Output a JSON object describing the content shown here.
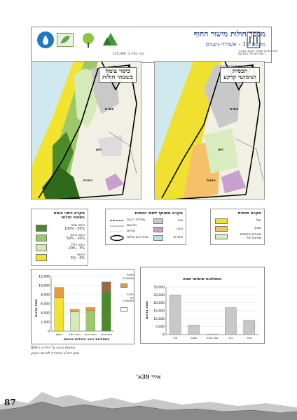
{
  "header": {
    "title": "מסמך חולות מישור החוף",
    "subtitle": "מקטע 10 - אשדוד-ניצנים",
    "scale": "קנה מידה 1: 125,000",
    "source": "רשות ישראל החדשה",
    "logos": [
      {
        "name": "ministry",
        "caption": "מדינת ישראל\nהמשרד להגנת הסביבה"
      },
      {
        "name": "forest",
        "caption": "החברה\nלהגנת הטבע"
      },
      {
        "name": "tree",
        "caption": "קק\"ל"
      },
      {
        "name": "leaf",
        "caption": "רשות הטבע\nוהגנים"
      },
      {
        "name": "drop",
        "caption": "מים"
      }
    ]
  },
  "map_left": {
    "title_line1": "כיסוי צומח",
    "title_line2": "בשטחי חולות",
    "labels": {
      "city": "אשדוד",
      "mid": "ניצן",
      "south": "ניצנים"
    }
  },
  "map_right": {
    "title_line1": "תכסית",
    "title_line2": "ושימושי קרקע",
    "labels": {
      "city": "אשדוד",
      "mid": "ניצן",
      "south": "ניצנים"
    }
  },
  "legend_veg": {
    "title_line1": "מקרא כיסוי צומח",
    "title_line2": "בשטחי חולות",
    "items": [
      {
        "label": "כיסוי גבוה\n50% - 100%",
        "color": "#4d8a2a"
      },
      {
        "label": "כיסוי בינוני\n20% - 50%",
        "color": "#9cc86a"
      },
      {
        "label": "כיסוי דליל\n5% - 20%",
        "color": "#d6e9b8"
      },
      {
        "label": "חשוף\n0% - 5%",
        "color": "#f2e32c"
      }
    ]
  },
  "legend_common": {
    "title": "מקרא משותף לשתי המפות",
    "items": [
      {
        "label": "מסילת רכבת",
        "kind": "line"
      },
      {
        "label": "כבישים",
        "kind": "line"
      },
      {
        "label": "נחלים",
        "kind": "dotted"
      },
      {
        "label": "גבול גוש חולות",
        "kind": "outline"
      }
    ],
    "right_items": [
      {
        "label": "בנוי",
        "color": "#c8c8c8"
      },
      {
        "label": "מבני",
        "color": "#c7a0cf"
      },
      {
        "label": "מים-ים",
        "color": "#bfe0e8"
      }
    ]
  },
  "legend_landuse": {
    "title": "מקרא תכסית",
    "items": [
      {
        "label": "חול",
        "color": "#f0e030"
      },
      {
        "label": "מטעי",
        "color": "#f4c06a"
      },
      {
        "label": "שטחים פתוחים\nשאינם חול",
        "color": "#d8ecc0"
      }
    ]
  },
  "chart_veg": {
    "ylabel": "שטח בדונם",
    "xlabel": "התפלגות כיסוי החולות בכמות",
    "yticks": [
      "0",
      "2,000",
      "4,000",
      "6,000",
      "8,000",
      "10,000",
      "12,000"
    ],
    "legend_built": "חולות\nמאושרים",
    "legend_unbuilt": "חולות\nלא\nמאושרים"
  },
  "chart_landuse": {
    "title": "התפלגות שימושי שטח",
    "ylabel": "שטח בדונם",
    "yticks": [
      "0",
      "5,000",
      "10,000",
      "15,000",
      "20,000",
      "25,000",
      "30,000"
    ]
  },
  "chart_data": [
    {
      "type": "bar",
      "stacked": true,
      "categories": [
        "חשוף",
        "כיסוי דליל",
        "כיסוי בינוני",
        "כיסוי גבוה"
      ],
      "series": [
        {
          "name": "חולות מאושרים",
          "values": [
            7300,
            4200,
            4500,
            8600
          ],
          "colors": [
            "#f2e32c",
            "#d6e9b8",
            "#9cc86a",
            "#4d8a2a"
          ]
        },
        {
          "name": "חולות לא מאושרים",
          "values": [
            2300,
            600,
            700,
            2200
          ],
          "colors": [
            "#e89a3c",
            "#e89a3c",
            "#e89a3c",
            "#9a6a46"
          ]
        }
      ],
      "ylim": [
        0,
        12000
      ],
      "ylabel": "שטח בדונם",
      "xlabel": "התפלגות כיסוי החולות בכמות"
    },
    {
      "type": "bar",
      "title": "התפלגות שימושי שטח",
      "categories": [
        "חול",
        "מטעי",
        "מבני ציבור",
        "בנוי",
        "אחר"
      ],
      "values": [
        25000,
        6000,
        400,
        17000,
        9000
      ],
      "ylim": [
        0,
        30000
      ],
      "ylabel": "שטח בדונם"
    }
  ],
  "credits": {
    "line1": "המפות הוכנו ע\"י יחידת ה-GIS",
    "line2": "מכון דש\"א-החברה להגנת הטבע"
  },
  "caption": "איור 39א'",
  "page_number": "87"
}
